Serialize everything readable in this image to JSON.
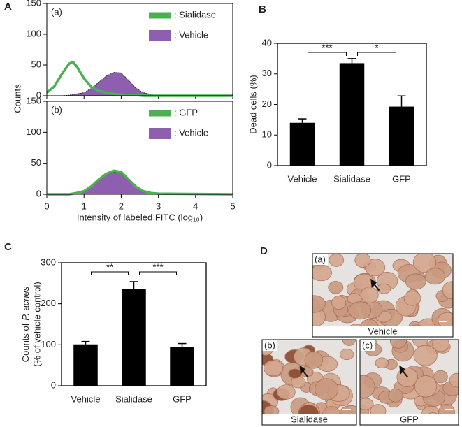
{
  "chart_data": [
    {
      "type": "histogram-line",
      "panel": "A",
      "tag": "(a)",
      "ylabel": "Counts",
      "xlim": [
        0,
        5
      ],
      "xticks": [
        0,
        1,
        2,
        3,
        4,
        5
      ],
      "xtick_labels": false,
      "ylim": [
        0,
        150
      ],
      "yticks": [
        0,
        50,
        100,
        150
      ],
      "legend": "upper right",
      "x": [
        0,
        0.2,
        0.4,
        0.6,
        0.7,
        0.8,
        1.0,
        1.2,
        1.4,
        1.6,
        1.8,
        2.0,
        2.2,
        2.4,
        2.6,
        2.8,
        3.0,
        5
      ],
      "series": [
        {
          "name": ": Sialidase",
          "color": "#4caf50",
          "style": "line",
          "values": [
            5,
            15,
            35,
            52,
            55,
            48,
            28,
            14,
            8,
            5,
            3,
            2,
            1,
            1,
            0,
            0,
            0,
            0
          ]
        },
        {
          "name": ": Vehicle",
          "color": "#8e5fb0",
          "style": "area",
          "values": [
            0,
            0,
            0,
            1,
            2,
            3,
            5,
            12,
            22,
            32,
            38,
            37,
            25,
            12,
            5,
            2,
            0,
            0
          ]
        }
      ]
    },
    {
      "type": "histogram-line",
      "tag": "(b)",
      "xlabel": "Intensity of labeled FITC (log₁₀)",
      "xlim": [
        0,
        5
      ],
      "xticks": [
        0,
        1,
        2,
        3,
        4,
        5
      ],
      "ylim": [
        0,
        150
      ],
      "yticks": [
        0,
        50,
        100,
        150
      ],
      "legend": "upper right",
      "x": [
        0,
        0.2,
        0.4,
        0.6,
        0.7,
        0.8,
        1.0,
        1.2,
        1.4,
        1.6,
        1.8,
        2.0,
        2.2,
        2.4,
        2.6,
        2.8,
        3.0,
        5
      ],
      "series": [
        {
          "name": ": GFP",
          "color": "#4caf50",
          "style": "line",
          "values": [
            0,
            0,
            0,
            0,
            1,
            2,
            5,
            13,
            24,
            33,
            38,
            36,
            24,
            12,
            5,
            2,
            1,
            0
          ]
        },
        {
          "name": ": Vehicle",
          "color": "#8e5fb0",
          "style": "area",
          "values": [
            0,
            0,
            0,
            0,
            0,
            1,
            4,
            12,
            22,
            32,
            36,
            35,
            23,
            11,
            4,
            2,
            0,
            0
          ]
        }
      ]
    },
    {
      "type": "bar",
      "panel": "B",
      "ylabel": [
        "Dead cells (%)"
      ],
      "categories": [
        "Vehicle",
        "Sialidase",
        "GFP"
      ],
      "values": [
        14,
        33.5,
        19.3
      ],
      "errors": [
        1.3,
        1.5,
        3.5
      ],
      "color": "#000000",
      "ylim": [
        0,
        40
      ],
      "yticks": [
        0,
        10,
        20,
        30,
        40
      ],
      "significance": [
        {
          "from": 0,
          "to": 1,
          "label": "***"
        },
        {
          "from": 1,
          "to": 2,
          "label": "*"
        }
      ]
    },
    {
      "type": "bar",
      "panel": "C",
      "ylabel": [
        "Counts of",
        "P. acnes",
        "(% of vehicle control)"
      ],
      "categories": [
        "Vehicle",
        "Sialidase",
        "GFP"
      ],
      "values": [
        101,
        236,
        94
      ],
      "errors": [
        7,
        18,
        9
      ],
      "color": "#000000",
      "ylim": [
        0,
        300
      ],
      "yticks": [
        0,
        100,
        200,
        300
      ],
      "significance": [
        {
          "from": 0,
          "to": 1,
          "label": "**"
        },
        {
          "from": 1,
          "to": 2,
          "label": "***"
        }
      ]
    }
  ],
  "micrographs": {
    "panel": "D",
    "images": [
      {
        "tag": "(a)",
        "caption": "Vehicle"
      },
      {
        "tag": "(b)",
        "caption": "Sialidase"
      },
      {
        "tag": "(c)",
        "caption": "GFP"
      }
    ]
  }
}
